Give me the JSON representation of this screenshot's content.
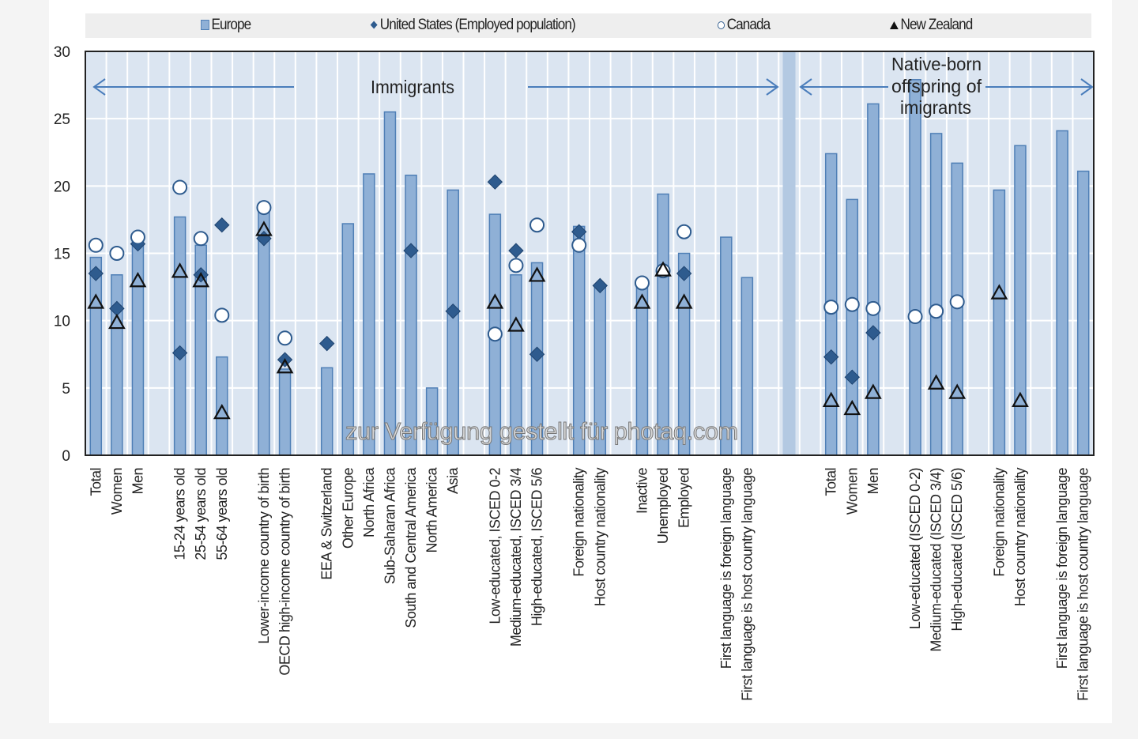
{
  "chart_data": {
    "type": "bar",
    "title": "",
    "xlabel": "",
    "ylabel": "",
    "ylim": [
      0,
      30
    ],
    "yticks": [
      "0",
      "5",
      "10",
      "15",
      "20",
      "25",
      "30"
    ],
    "grid": true,
    "legend_position": "top",
    "legend": [
      {
        "name": "Europe",
        "marker": "bar"
      },
      {
        "name": "United States (Employed population)",
        "marker": "diamond"
      },
      {
        "name": "Canada",
        "marker": "circle"
      },
      {
        "name": "New Zealand",
        "marker": "triangle"
      }
    ],
    "annotations": {
      "immigrants": "Immigrants",
      "native_line1": "Native-born",
      "native_line2": "offspring of",
      "native_line3": "imigrants"
    },
    "categories": [
      {
        "slot": 0,
        "label": "Total",
        "europe": 14.7,
        "us": 13.5,
        "canada": 15.6,
        "nz": 11.3
      },
      {
        "slot": 1,
        "label": "Women",
        "europe": 13.4,
        "us": 10.9,
        "canada": 15.0,
        "nz": 9.8
      },
      {
        "slot": 2,
        "label": "Men",
        "europe": 15.9,
        "us": 15.7,
        "canada": 16.2,
        "nz": 12.9
      },
      {
        "slot": 4,
        "label": "15-24 years old",
        "europe": 17.7,
        "us": 7.6,
        "canada": 19.9,
        "nz": 13.6
      },
      {
        "slot": 5,
        "label": "25-54 years old",
        "europe": 15.6,
        "us": 13.4,
        "canada": 16.1,
        "nz": 12.9
      },
      {
        "slot": 6,
        "label": "55-64 years old",
        "europe": 7.3,
        "us": 17.1,
        "canada": 10.4,
        "nz": 3.1
      },
      {
        "slot": 8,
        "label": "Lower-income country of birth",
        "europe": 18.3,
        "us": 16.1,
        "canada": 18.4,
        "nz": 16.7
      },
      {
        "slot": 9,
        "label": "OECD high-income country of birth",
        "europe": 6.4,
        "us": 7.1,
        "canada": 8.7,
        "nz": 6.5
      },
      {
        "slot": 11,
        "label": "EEA & Switzerland",
        "europe": 6.5,
        "us": 8.3,
        "canada": null,
        "nz": null
      },
      {
        "slot": 12,
        "label": "Other Europe",
        "europe": 17.2,
        "us": null,
        "canada": null,
        "nz": null
      },
      {
        "slot": 13,
        "label": "North Africa",
        "europe": 20.9,
        "us": null,
        "canada": null,
        "nz": null
      },
      {
        "slot": 14,
        "label": "Sub-Saharan Africa",
        "europe": 25.5,
        "us": null,
        "canada": null,
        "nz": null
      },
      {
        "slot": 15,
        "label": "South and Central America",
        "europe": 20.8,
        "us": 15.2,
        "canada": null,
        "nz": null
      },
      {
        "slot": 16,
        "label": "North America",
        "europe": 5.0,
        "us": null,
        "canada": null,
        "nz": null
      },
      {
        "slot": 17,
        "label": "Asia",
        "europe": 19.7,
        "us": 10.7,
        "canada": null,
        "nz": null
      },
      {
        "slot": 19,
        "label": "Low-educated, ISCED 0-2",
        "europe": 17.9,
        "us": 20.3,
        "canada": 9.0,
        "nz": 11.3
      },
      {
        "slot": 20,
        "label": "Medium-educated, ISCED 3/4",
        "europe": 13.4,
        "us": 15.2,
        "canada": 14.1,
        "nz": 9.6
      },
      {
        "slot": 21,
        "label": "High-educated, ISCED 5/6",
        "europe": 14.3,
        "us": 7.5,
        "canada": 17.1,
        "nz": 13.3
      },
      {
        "slot": 23,
        "label": "Foreign nationality",
        "europe": 17.0,
        "us": 16.6,
        "canada": 15.6,
        "nz": null
      },
      {
        "slot": 24,
        "label": "Host country nationality",
        "europe": 12.6,
        "us": 12.6,
        "canada": null,
        "nz": null
      },
      {
        "slot": 26,
        "label": "Inactive",
        "europe": 12.7,
        "us": null,
        "canada": 12.8,
        "nz": 11.3
      },
      {
        "slot": 27,
        "label": "Unemployed",
        "europe": 19.4,
        "us": null,
        "canada": 13.7,
        "nz": 13.7
      },
      {
        "slot": 28,
        "label": "Employed",
        "europe": 15.0,
        "us": 13.5,
        "canada": 16.6,
        "nz": 11.3
      },
      {
        "slot": 30,
        "label": "First language is foreign language",
        "europe": 16.2,
        "us": null,
        "canada": null,
        "nz": null
      },
      {
        "slot": 31,
        "label": "First language is host country language",
        "europe": 13.2,
        "us": null,
        "canada": null,
        "nz": null
      },
      {
        "slot": 35,
        "label": "Total",
        "europe": 22.4,
        "us": 7.3,
        "canada": 11.0,
        "nz": 4.0
      },
      {
        "slot": 36,
        "label": "Women",
        "europe": 19.0,
        "us": 5.8,
        "canada": 11.2,
        "nz": 3.4
      },
      {
        "slot": 37,
        "label": "Men",
        "europe": 26.1,
        "us": 9.1,
        "canada": 10.9,
        "nz": 4.6
      },
      {
        "slot": 39,
        "label": "Low-educated (ISCED 0-2)",
        "europe": 27.9,
        "us": null,
        "canada": 10.3,
        "nz": null
      },
      {
        "slot": 40,
        "label": "Medium-educated (ISCED 3/4)",
        "europe": 23.9,
        "us": null,
        "canada": 10.7,
        "nz": 5.3
      },
      {
        "slot": 41,
        "label": "High-educated (ISCED 5/6)",
        "europe": 21.7,
        "us": null,
        "canada": 11.4,
        "nz": 4.6
      },
      {
        "slot": 43,
        "label": "Foreign nationality",
        "europe": 19.7,
        "us": null,
        "canada": null,
        "nz": 12.0
      },
      {
        "slot": 44,
        "label": "Host country nationality",
        "europe": 23.0,
        "us": null,
        "canada": null,
        "nz": 4.0
      },
      {
        "slot": 46,
        "label": "First language is foreign language",
        "europe": 24.1,
        "us": null,
        "canada": null,
        "nz": null
      },
      {
        "slot": 47,
        "label": "First language is host country language",
        "europe": 21.1,
        "us": null,
        "canada": null,
        "nz": null
      }
    ],
    "separator_slot": 33,
    "total_slots": 48
  },
  "colors": {
    "plot_bg": "#dbe5f1",
    "bar_fill": "#8fb0d6",
    "bar_stroke": "#4f7fb6",
    "diamond": "#2e5b8e",
    "arrow": "#4a7dbb",
    "separator": "#b3c9e2"
  },
  "watermark": "zur Verfügung gestellt für photaq.com"
}
